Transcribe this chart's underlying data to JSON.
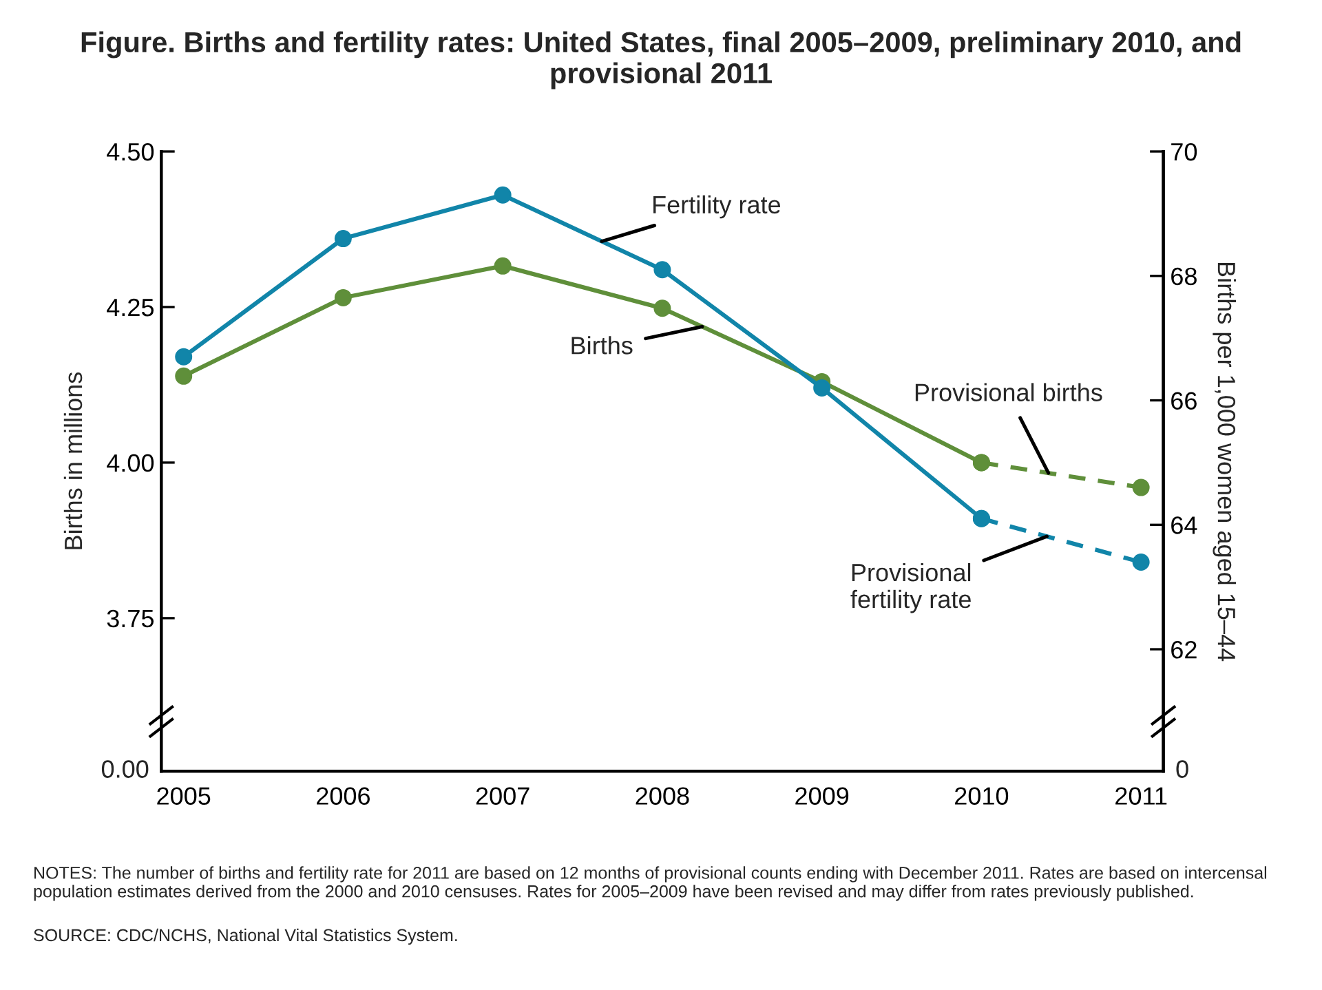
{
  "chart_data": [
    {
      "type": "line",
      "title": "Figure. Births and fertility rates: United States, final 2005–2009, preliminary 2010, and provisional 2011",
      "categories": [
        "2005",
        "2006",
        "2007",
        "2008",
        "2009",
        "2010",
        "2011"
      ],
      "ylabel": "Births in millions",
      "y2label": "Births per 1,000 women aged 15–44",
      "ylim": [
        3.504,
        4.5
      ],
      "yticks": [
        {
          "value": 3.75,
          "label": "3.75"
        },
        {
          "value": 4.0,
          "label": "4.00"
        },
        {
          "value": 4.25,
          "label": "4.25"
        },
        {
          "value": 4.5,
          "label": "4.50"
        }
      ],
      "y2lim": [
        60.04,
        70
      ],
      "y2ticks": [
        62,
        64,
        66,
        68,
        70
      ],
      "grid": false,
      "legend": false,
      "marker": "circle",
      "series": [
        {
          "name": "Births",
          "color": "#5f8f3a",
          "line_style": "solid",
          "values": [
            4.139,
            4.265,
            4.316,
            4.248,
            4.13,
            4.0,
            null
          ]
        },
        {
          "name": "Fertility rate",
          "color": "#1185a9",
          "axis": "y2",
          "line_style": "solid",
          "values": [
            66.7,
            68.6,
            69.3,
            68.1,
            66.2,
            64.1,
            null
          ]
        },
        {
          "name": "Provisional births",
          "color": "#5f8f3a",
          "line_style": "dashed",
          "values": [
            null,
            null,
            null,
            null,
            null,
            4.0,
            3.96
          ]
        },
        {
          "name": "Provisional\nfertility rate",
          "color": "#1185a9",
          "axis": "y2",
          "line_style": "dashed",
          "values": [
            null,
            null,
            null,
            null,
            null,
            64.1,
            63.4
          ]
        }
      ],
      "annotations": [
        "0.00",
        "0",
        "NOTES: The number of births and fertility rate for 2011 are based on 12 months of provisional counts ending with December 2011. Rates are based on intercensal population estimates derived from the 2000 and 2010 censuses. Rates for 2005–2009 have been revised and may differ from rates previously published.",
        "SOURCE: CDC/NCHS, National Vital Statistics System."
      ]
    }
  ]
}
